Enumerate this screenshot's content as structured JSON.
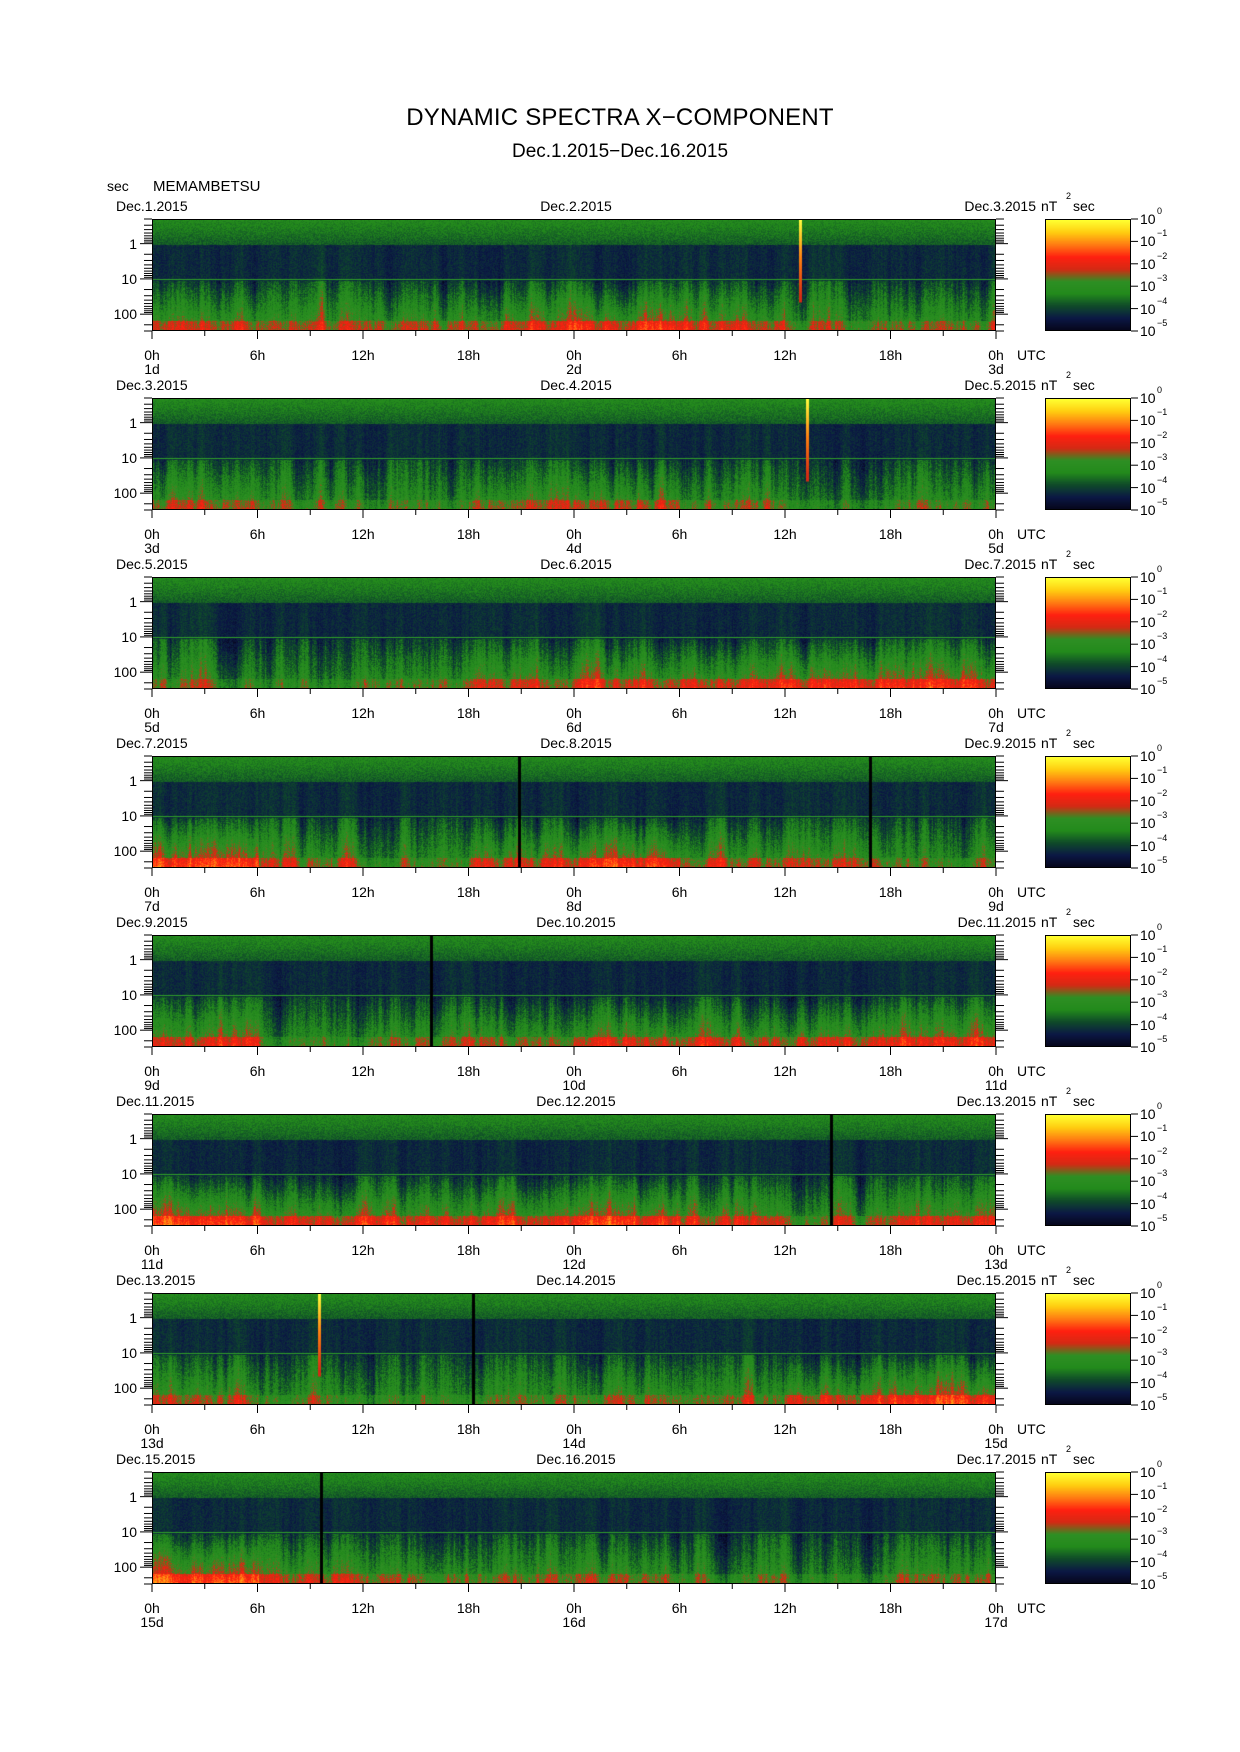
{
  "header": {
    "title": "DYNAMIC SPECTRA X−COMPONENT",
    "subtitle": "Dec.1.2015−Dec.16.2015",
    "y_unit": "sec",
    "station": "MEMAMBETSU"
  },
  "chart_data": {
    "type": "heatmap",
    "title": "DYNAMIC SPECTRA X−COMPONENT",
    "subtitle": "Dec.1.2015−Dec.16.2015",
    "station": "MEMAMBETSU",
    "y_axis": {
      "label": "sec",
      "scale": "log",
      "range": [
        0.2,
        300
      ],
      "ticks": [
        "1",
        "10",
        "100"
      ],
      "inverted": true
    },
    "x_axis": {
      "unit": "UTC",
      "ticks": [
        "0h",
        "6h",
        "12h",
        "18h",
        "0h",
        "6h",
        "12h",
        "18h",
        "0h"
      ],
      "hours_per_panel": 48
    },
    "colorbar": {
      "unit": "nT",
      "unit_sup": "2",
      "unit_tail": "sec",
      "scale": "log",
      "range": [
        "1e-5",
        "1e0"
      ],
      "ticks": [
        {
          "base": "10",
          "exp": "0"
        },
        {
          "base": "10",
          "exp": "−1"
        },
        {
          "base": "10",
          "exp": "−2"
        },
        {
          "base": "10",
          "exp": "−3"
        },
        {
          "base": "10",
          "exp": "−4"
        },
        {
          "base": "10",
          "exp": "−5"
        }
      ],
      "colors": [
        "#06061a",
        "#0b1845",
        "#0f4a2a",
        "#238a1c",
        "#2e8f24",
        "#d42a14",
        "#ff2010",
        "#ff7a12",
        "#ffcc10",
        "#ffff30"
      ]
    },
    "panels": [
      {
        "start_date": "Dec.1.2015",
        "mid_date": "Dec.2.2015",
        "end_date": "Dec.3.2015",
        "day_labels": [
          "1d",
          "2d",
          "3d"
        ],
        "gaps_hours": [],
        "spikes_hours": [
          36.8
        ],
        "low_freq_activity": [
          [
            0,
            6,
            0.55
          ],
          [
            6,
            12,
            0.45
          ],
          [
            12,
            18,
            0.5
          ],
          [
            18,
            24,
            0.55
          ],
          [
            24,
            30,
            0.65
          ],
          [
            30,
            36,
            0.55
          ],
          [
            36,
            42,
            0.4
          ],
          [
            42,
            48,
            0.45
          ]
        ]
      },
      {
        "start_date": "Dec.3.2015",
        "mid_date": "Dec.4.2015",
        "end_date": "Dec.5.2015",
        "day_labels": [
          "3d",
          "4d",
          "5d"
        ],
        "gaps_hours": [],
        "spikes_hours": [
          37.2
        ],
        "low_freq_activity": [
          [
            0,
            6,
            0.45
          ],
          [
            6,
            12,
            0.35
          ],
          [
            12,
            18,
            0.3
          ],
          [
            18,
            24,
            0.45
          ],
          [
            24,
            30,
            0.5
          ],
          [
            30,
            36,
            0.4
          ],
          [
            36,
            42,
            0.3
          ],
          [
            42,
            48,
            0.35
          ]
        ]
      },
      {
        "start_date": "Dec.5.2015",
        "mid_date": "Dec.6.2015",
        "end_date": "Dec.7.2015",
        "day_labels": [
          "5d",
          "6d",
          "7d"
        ],
        "gaps_hours": [],
        "spikes_hours": [],
        "low_freq_activity": [
          [
            0,
            6,
            0.35
          ],
          [
            6,
            12,
            0.3
          ],
          [
            12,
            18,
            0.4
          ],
          [
            18,
            24,
            0.5
          ],
          [
            24,
            30,
            0.55
          ],
          [
            30,
            36,
            0.6
          ],
          [
            36,
            42,
            0.65
          ],
          [
            42,
            48,
            0.6
          ]
        ]
      },
      {
        "start_date": "Dec.7.2015",
        "mid_date": "Dec.8.2015",
        "end_date": "Dec.9.2015",
        "day_labels": [
          "7d",
          "8d",
          "9d"
        ],
        "gaps_hours": [
          20.8,
          40.8
        ],
        "spikes_hours": [],
        "low_freq_activity": [
          [
            0,
            6,
            0.7
          ],
          [
            6,
            12,
            0.45
          ],
          [
            12,
            18,
            0.35
          ],
          [
            18,
            24,
            0.55
          ],
          [
            24,
            30,
            0.7
          ],
          [
            30,
            36,
            0.5
          ],
          [
            36,
            42,
            0.45
          ],
          [
            42,
            48,
            0.35
          ]
        ]
      },
      {
        "start_date": "Dec.9.2015",
        "mid_date": "Dec.10.2015",
        "end_date": "Dec.11.2015",
        "day_labels": [
          "9d",
          "10d",
          "11d"
        ],
        "gaps_hours": [
          15.8
        ],
        "spikes_hours": [],
        "low_freq_activity": [
          [
            0,
            6,
            0.55
          ],
          [
            6,
            12,
            0.35
          ],
          [
            12,
            18,
            0.45
          ],
          [
            18,
            24,
            0.5
          ],
          [
            24,
            30,
            0.6
          ],
          [
            30,
            36,
            0.55
          ],
          [
            36,
            42,
            0.6
          ],
          [
            42,
            48,
            0.6
          ]
        ]
      },
      {
        "start_date": "Dec.11.2015",
        "mid_date": "Dec.12.2015",
        "end_date": "Dec.13.2015",
        "day_labels": [
          "11d",
          "12d",
          "13d"
        ],
        "gaps_hours": [
          38.6
        ],
        "spikes_hours": [],
        "low_freq_activity": [
          [
            0,
            6,
            0.75
          ],
          [
            6,
            12,
            0.65
          ],
          [
            12,
            18,
            0.6
          ],
          [
            18,
            24,
            0.65
          ],
          [
            24,
            30,
            0.7
          ],
          [
            30,
            36,
            0.55
          ],
          [
            36,
            42,
            0.45
          ],
          [
            42,
            48,
            0.55
          ]
        ]
      },
      {
        "start_date": "Dec.13.2015",
        "mid_date": "Dec.14.2015",
        "end_date": "Dec.15.2015",
        "day_labels": [
          "13d",
          "14d",
          "15d"
        ],
        "gaps_hours": [
          18.2
        ],
        "spikes_hours": [
          9.4
        ],
        "low_freq_activity": [
          [
            0,
            6,
            0.45
          ],
          [
            6,
            12,
            0.35
          ],
          [
            12,
            18,
            0.3
          ],
          [
            18,
            24,
            0.35
          ],
          [
            24,
            30,
            0.45
          ],
          [
            30,
            36,
            0.4
          ],
          [
            36,
            42,
            0.6
          ],
          [
            42,
            48,
            0.7
          ]
        ]
      },
      {
        "start_date": "Dec.15.2015",
        "mid_date": "Dec.16.2015",
        "end_date": "Dec.17.2015",
        "day_labels": [
          "15d",
          "16d",
          "17d"
        ],
        "gaps_hours": [
          9.5
        ],
        "spikes_hours": [],
        "low_freq_activity": [
          [
            0,
            6,
            0.75
          ],
          [
            6,
            12,
            0.5
          ],
          [
            12,
            18,
            0.45
          ],
          [
            18,
            24,
            0.4
          ],
          [
            24,
            30,
            0.45
          ],
          [
            30,
            36,
            0.35
          ],
          [
            36,
            42,
            0.3
          ],
          [
            42,
            48,
            0.4
          ]
        ]
      }
    ]
  }
}
